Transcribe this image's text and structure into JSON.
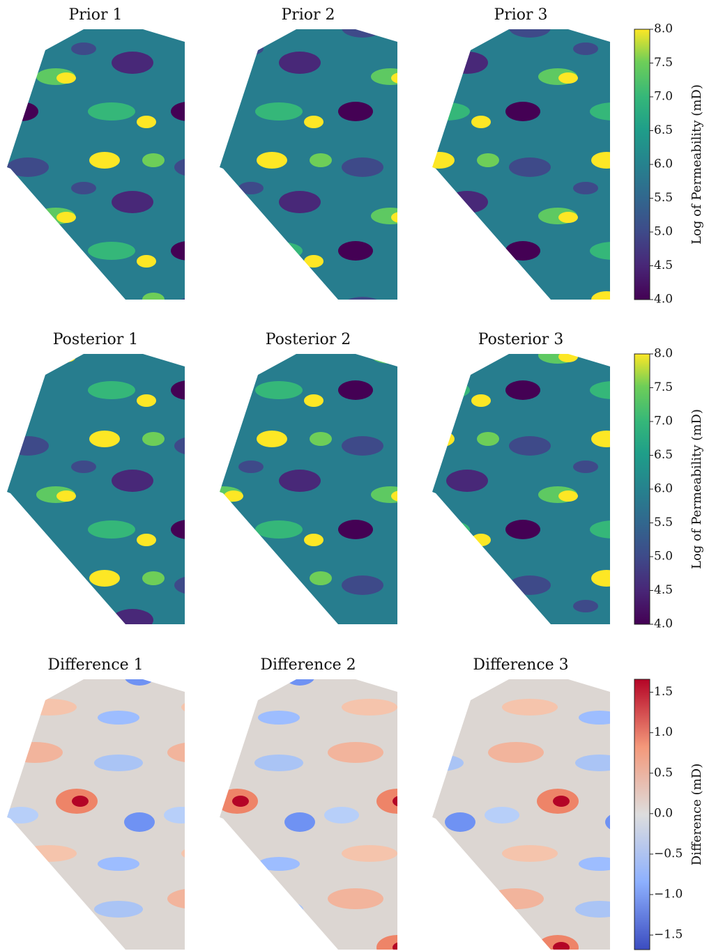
{
  "chart_data": [
    {
      "type": "heatmap",
      "titles": [
        "Prior 1",
        "Prior 2",
        "Prior 3"
      ],
      "colorbar_label": "Log of Permeability (mD)",
      "colormap": "viridis",
      "clim": [
        4.0,
        8.0
      ],
      "cticks": [
        {
          "value": 4.0,
          "label": "4.0"
        },
        {
          "value": 4.5,
          "label": "4.5"
        },
        {
          "value": 5.0,
          "label": "5.0"
        },
        {
          "value": 5.5,
          "label": "5.5"
        },
        {
          "value": 6.0,
          "label": "6.0"
        },
        {
          "value": 6.5,
          "label": "6.5"
        },
        {
          "value": 7.0,
          "label": "7.0"
        },
        {
          "value": 7.5,
          "label": "7.5"
        },
        {
          "value": 8.0,
          "label": "8.0"
        }
      ]
    },
    {
      "type": "heatmap",
      "titles": [
        "Posterior 1",
        "Posterior 2",
        "Posterior 3"
      ],
      "colorbar_label": "Log of Permeability (mD)",
      "colormap": "viridis",
      "clim": [
        4.0,
        8.0
      ],
      "cticks": [
        {
          "value": 4.0,
          "label": "4.0"
        },
        {
          "value": 4.5,
          "label": "4.5"
        },
        {
          "value": 5.0,
          "label": "5.0"
        },
        {
          "value": 5.5,
          "label": "5.5"
        },
        {
          "value": 6.0,
          "label": "6.0"
        },
        {
          "value": 6.5,
          "label": "6.5"
        },
        {
          "value": 7.0,
          "label": "7.0"
        },
        {
          "value": 7.5,
          "label": "7.5"
        },
        {
          "value": 8.0,
          "label": "8.0"
        }
      ]
    },
    {
      "type": "heatmap",
      "titles": [
        "Difference 1",
        "Difference 2",
        "Difference 3"
      ],
      "colorbar_label": "Difference  (mD)",
      "colormap": "coolwarm",
      "clim": [
        -1.68,
        1.66
      ],
      "cticks": [
        {
          "value": -1.5,
          "label": "−1.5"
        },
        {
          "value": -1.0,
          "label": "−1.0"
        },
        {
          "value": -0.5,
          "label": "−0.5"
        },
        {
          "value": 0.0,
          "label": "0.0"
        },
        {
          "value": 0.5,
          "label": "0.5"
        },
        {
          "value": 1.0,
          "label": "1.0"
        },
        {
          "value": 1.5,
          "label": "1.5"
        }
      ]
    }
  ]
}
